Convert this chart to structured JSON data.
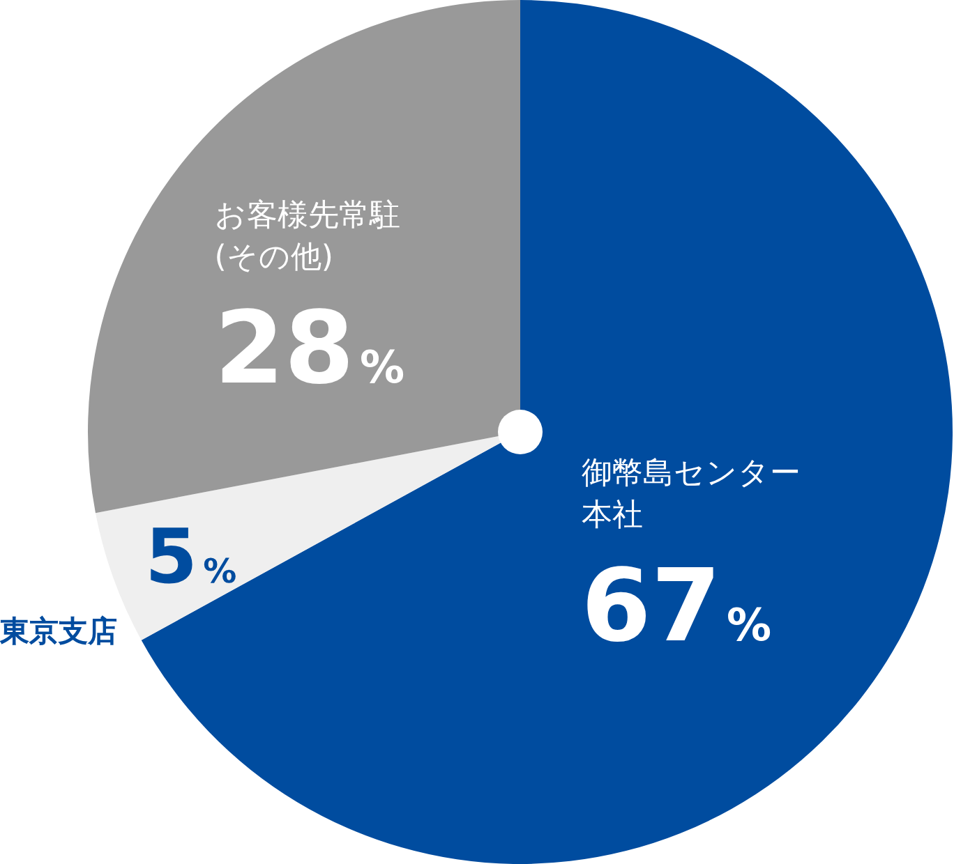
{
  "chart_data": {
    "type": "pie",
    "categories": [
      "御幣島センター本社",
      "東京支店",
      "お客様先常駐(その他)"
    ],
    "values": [
      67,
      5,
      28
    ],
    "colors": [
      "#004c9f",
      "#efefef",
      "#999999"
    ],
    "value_labels": [
      "67%",
      "5%",
      "28%"
    ],
    "legend": false
  }
}
